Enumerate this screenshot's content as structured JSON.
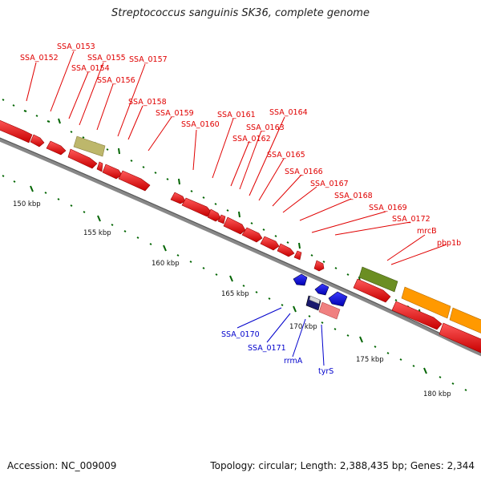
{
  "map": {
    "title": "Streptococcus sanguinis SK36, complete genome",
    "accession": "Accession: NC_009009",
    "topology": "Topology: circular; Length: 2,388,435 bp; Genes: 2,344"
  },
  "scale": {
    "labels": [
      "150 kbp",
      "155 kbp",
      "160 kbp",
      "165 kbp",
      "170 kbp",
      "175 kbp",
      "180 kbp"
    ]
  },
  "genes": {
    "forward": [
      "SSA_0152",
      "SSA_0153",
      "SSA_0154",
      "SSA_0155",
      "SSA_0156",
      "SSA_0157",
      "SSA_0158",
      "SSA_0159",
      "SSA_0160",
      "SSA_0161",
      "SSA_0162",
      "SSA_0163",
      "SSA_0164",
      "SSA_0165",
      "SSA_0166",
      "SSA_0167",
      "SSA_0168",
      "SSA_0169",
      "SSA_0172",
      "mrcB",
      "pbp1b"
    ],
    "other": [
      "SSA_0170",
      "SSA_0171",
      "rrmA",
      "tyrS"
    ]
  },
  "colors": {
    "gene_red": "#f00000",
    "gene_blue": "#0000ee",
    "label_red": "#e00000",
    "label_blue": "#0000cc",
    "olive": "#6b8e23",
    "khaki": "#bdb76b",
    "orange": "#ff9900",
    "pink": "#f08080",
    "tick_green": "#006400",
    "backbone": "#888888"
  }
}
